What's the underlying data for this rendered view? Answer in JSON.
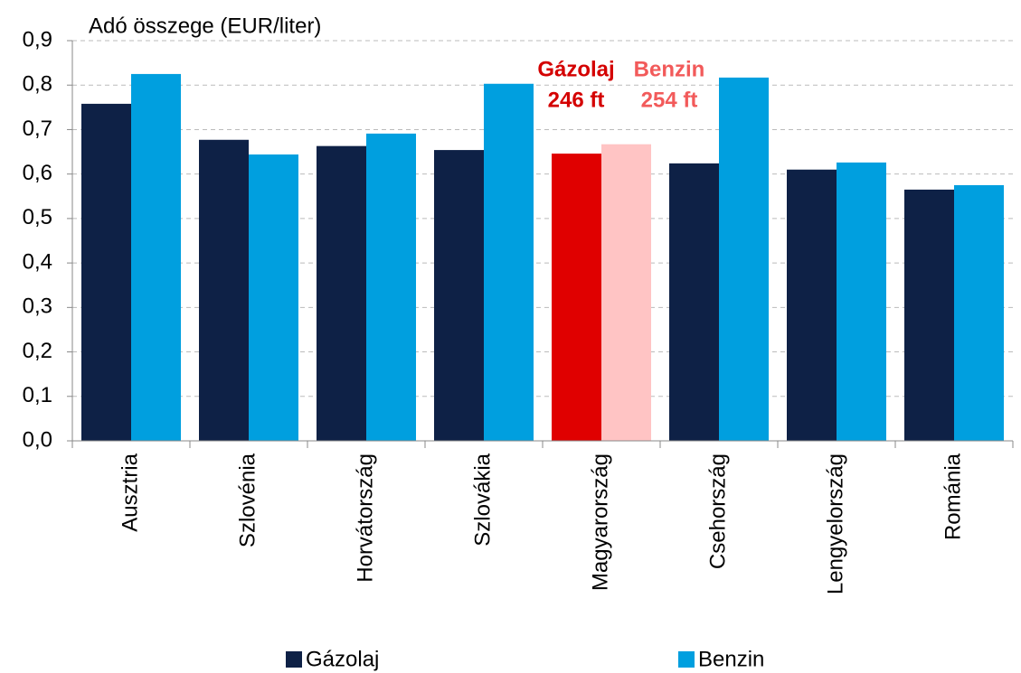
{
  "chart_data": {
    "type": "bar",
    "y_axis_title": "Adó összege (EUR/liter)",
    "categories": [
      "Ausztria",
      "Szlovénia",
      "Horvátország",
      "Szlovákia",
      "Magyarország",
      "Csehország",
      "Lengyelország",
      "Románia"
    ],
    "series": [
      {
        "name": "Gázolaj",
        "color": "#0e2146",
        "colors": [
          "#0e2146",
          "#0e2146",
          "#0e2146",
          "#0e2146",
          "#e00000",
          "#0e2146",
          "#0e2146",
          "#0e2146"
        ],
        "values": [
          0.758,
          0.677,
          0.663,
          0.654,
          0.646,
          0.624,
          0.61,
          0.565
        ]
      },
      {
        "name": "Benzin",
        "color": "#009fdf",
        "colors": [
          "#009fdf",
          "#009fdf",
          "#009fdf",
          "#009fdf",
          "#ffc4c4",
          "#009fdf",
          "#009fdf",
          "#009fdf"
        ],
        "values": [
          0.825,
          0.644,
          0.691,
          0.803,
          0.667,
          0.817,
          0.626,
          0.575
        ]
      }
    ],
    "annotations": [
      {
        "lines": [
          "Gázolaj",
          "246 ft"
        ],
        "color": "#d40000"
      },
      {
        "lines": [
          "Benzin",
          "254 ft"
        ],
        "color": "#f25a5a"
      }
    ],
    "ylim": [
      0,
      0.9
    ],
    "yticks": [
      {
        "value": 0,
        "label": "0,0"
      },
      {
        "value": 0.1,
        "label": "0,1"
      },
      {
        "value": 0.2,
        "label": "0,2"
      },
      {
        "value": 0.3,
        "label": "0,3"
      },
      {
        "value": 0.4,
        "label": "0,4"
      },
      {
        "value": 0.5,
        "label": "0,5"
      },
      {
        "value": 0.6,
        "label": "0,6"
      },
      {
        "value": 0.7,
        "label": "0,7"
      },
      {
        "value": 0.8,
        "label": "0,8"
      },
      {
        "value": 0.9,
        "label": "0,9"
      }
    ],
    "grid": true,
    "legend": "bottom"
  }
}
